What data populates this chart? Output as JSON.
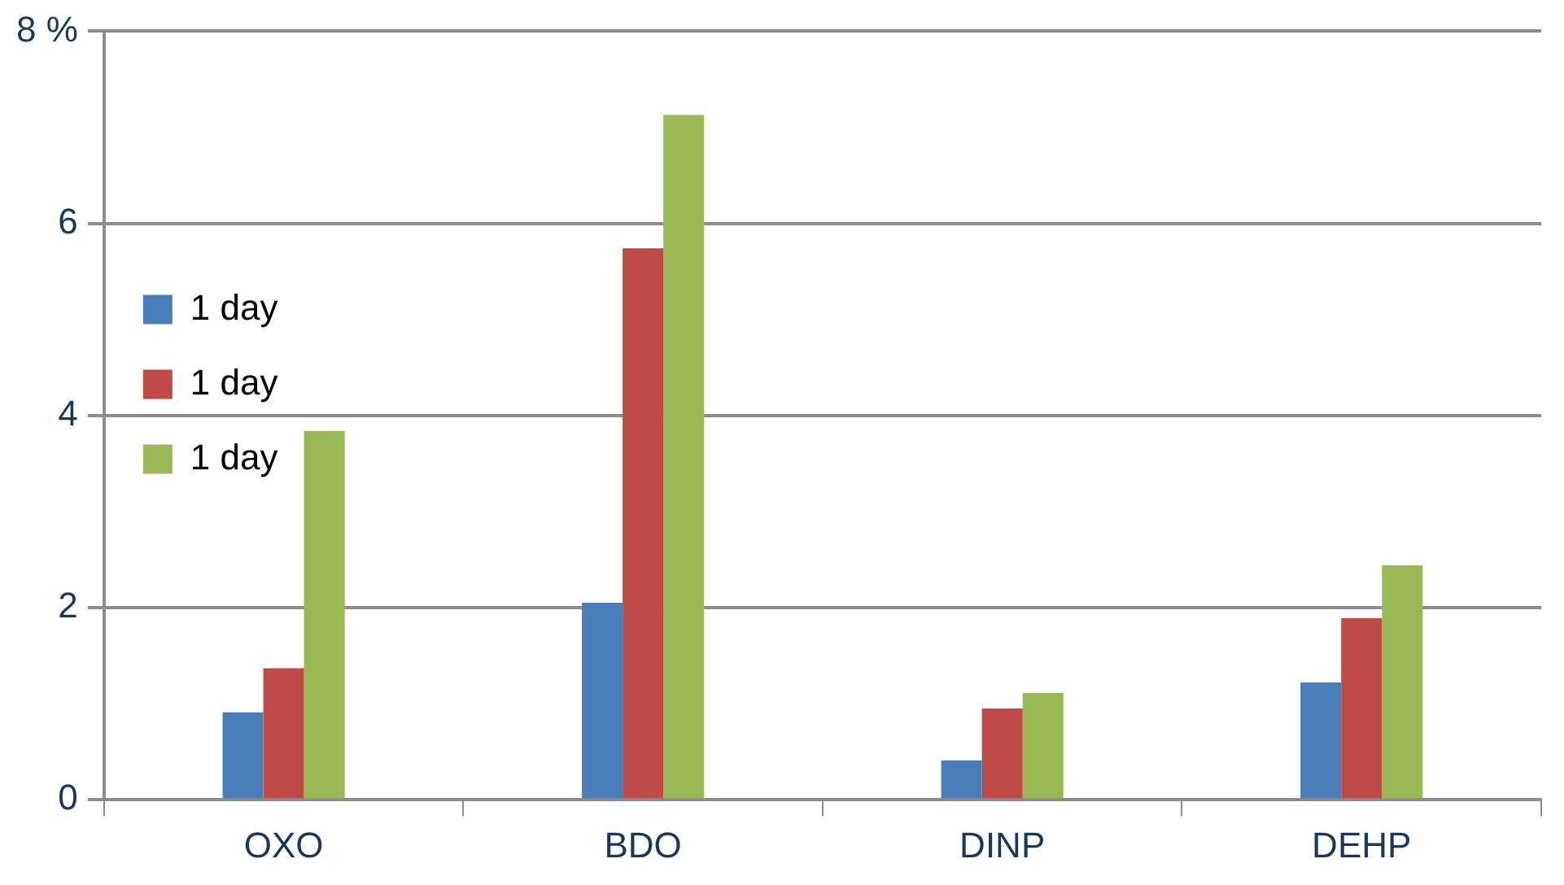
{
  "chart_data": {
    "type": "bar",
    "categories": [
      "OXO",
      "BDO",
      "DINP",
      "DEHP"
    ],
    "series": [
      {
        "name": "1 day",
        "color": "#4a7ebb",
        "values": [
          0.91,
          2.05,
          0.41,
          1.22
        ]
      },
      {
        "name": "1 day",
        "color": "#be4b48",
        "values": [
          1.37,
          5.74,
          0.95,
          1.89
        ]
      },
      {
        "name": "1 day",
        "color": "#98b954",
        "values": [
          3.84,
          7.13,
          1.11,
          2.44
        ]
      }
    ],
    "ylim": [
      0,
      8
    ],
    "yticks": [
      0,
      2,
      4,
      6,
      {
        "value": 8,
        "label": "8 %"
      }
    ],
    "grid": "y",
    "legend": "top"
  }
}
